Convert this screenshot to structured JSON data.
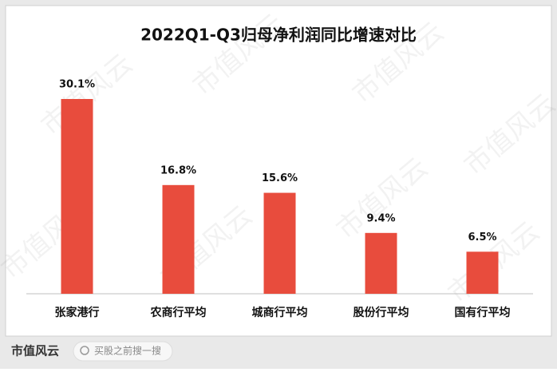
{
  "chart_data": {
    "type": "bar",
    "title": "2022Q1-Q3归母净利润同比增速对比",
    "categories": [
      "张家港行",
      "农商行平均",
      "城商行平均",
      "股份行平均",
      "国有行平均"
    ],
    "values": [
      30.1,
      16.8,
      15.6,
      9.4,
      6.5
    ],
    "value_labels": [
      "30.1%",
      "16.8%",
      "15.6%",
      "9.4%",
      "6.5%"
    ],
    "color": "#e84c3d"
  },
  "watermark": "市值风云",
  "footer": {
    "brand": "市值风云",
    "search": "买股之前搜一搜"
  }
}
